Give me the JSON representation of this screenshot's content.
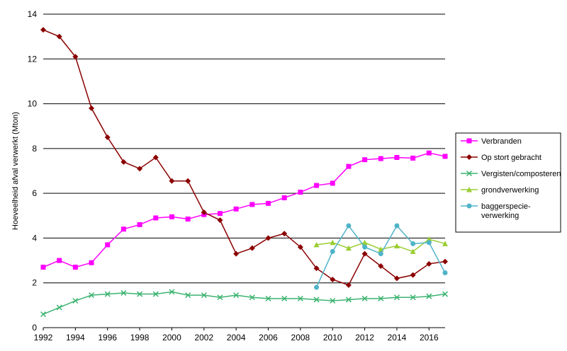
{
  "chart_data": {
    "type": "line",
    "title": "",
    "xlabel": "",
    "ylabel": "Hoeveelheid afval verwerkt (Mton)",
    "xlim": [
      1992,
      2017
    ],
    "ylim": [
      0,
      14
    ],
    "x_ticks": [
      "1992",
      "1994",
      "1996",
      "1998",
      "2000",
      "2002",
      "2004",
      "2006",
      "2008",
      "2010",
      "2012",
      "2014",
      "2016"
    ],
    "y_ticks": [
      "0",
      "2",
      "4",
      "6",
      "8",
      "10",
      "12",
      "14"
    ],
    "grid": "horizontal",
    "legend_position": "right",
    "series": [
      {
        "name": "Verbranden",
        "color": "#ff00ff",
        "marker": "square",
        "x": [
          1992,
          1993,
          1994,
          1995,
          1996,
          1997,
          1998,
          1999,
          2000,
          2001,
          2002,
          2003,
          2004,
          2005,
          2006,
          2007,
          2008,
          2009,
          2010,
          2011,
          2012,
          2013,
          2014,
          2015,
          2016,
          2017
        ],
        "values": [
          2.7,
          3.0,
          2.7,
          2.9,
          3.7,
          4.4,
          4.6,
          4.9,
          4.95,
          4.85,
          5.05,
          5.1,
          5.3,
          5.5,
          5.55,
          5.8,
          6.05,
          6.35,
          6.45,
          7.2,
          7.5,
          7.55,
          7.6,
          7.57,
          7.8,
          7.65
        ]
      },
      {
        "name": "Op stort gebracht",
        "color": "#8b0000",
        "marker": "diamond",
        "x": [
          1992,
          1993,
          1994,
          1995,
          1996,
          1997,
          1998,
          1999,
          2000,
          2001,
          2002,
          2003,
          2004,
          2005,
          2006,
          2007,
          2008,
          2009,
          2010,
          2011,
          2012,
          2013,
          2014,
          2015,
          2016,
          2017
        ],
        "values": [
          13.3,
          13.0,
          12.1,
          9.8,
          8.5,
          7.4,
          7.1,
          7.6,
          6.55,
          6.55,
          5.15,
          4.8,
          3.3,
          3.55,
          4.0,
          4.2,
          3.6,
          2.65,
          2.15,
          1.9,
          3.3,
          2.75,
          2.2,
          2.35,
          2.85,
          2.95
        ]
      },
      {
        "name": "Vergisten/composteren",
        "color": "#3cb371",
        "marker": "x",
        "x": [
          1992,
          1993,
          1994,
          1995,
          1996,
          1997,
          1998,
          1999,
          2000,
          2001,
          2002,
          2003,
          2004,
          2005,
          2006,
          2007,
          2008,
          2009,
          2010,
          2011,
          2012,
          2013,
          2014,
          2015,
          2016,
          2017
        ],
        "values": [
          0.6,
          0.9,
          1.2,
          1.45,
          1.5,
          1.55,
          1.5,
          1.5,
          1.6,
          1.45,
          1.45,
          1.35,
          1.45,
          1.35,
          1.3,
          1.3,
          1.3,
          1.25,
          1.2,
          1.25,
          1.3,
          1.3,
          1.35,
          1.35,
          1.4,
          1.5
        ]
      },
      {
        "name": "grondverwerking",
        "color": "#9acd32",
        "marker": "triangle",
        "x": [
          2009,
          2010,
          2011,
          2012,
          2013,
          2014,
          2015,
          2016,
          2017
        ],
        "values": [
          3.7,
          3.8,
          3.55,
          3.8,
          3.5,
          3.65,
          3.4,
          3.95,
          3.75
        ]
      },
      {
        "name": "baggerspecie-verwerking",
        "label_lines": [
          "baggerspecie-",
          "verwerking"
        ],
        "color": "#4fb3c8",
        "marker": "circle",
        "x": [
          2009,
          2010,
          2011,
          2012,
          2013,
          2014,
          2015,
          2016,
          2017
        ],
        "values": [
          1.8,
          3.4,
          4.55,
          3.6,
          3.3,
          4.55,
          3.75,
          3.8,
          2.45
        ]
      }
    ]
  }
}
